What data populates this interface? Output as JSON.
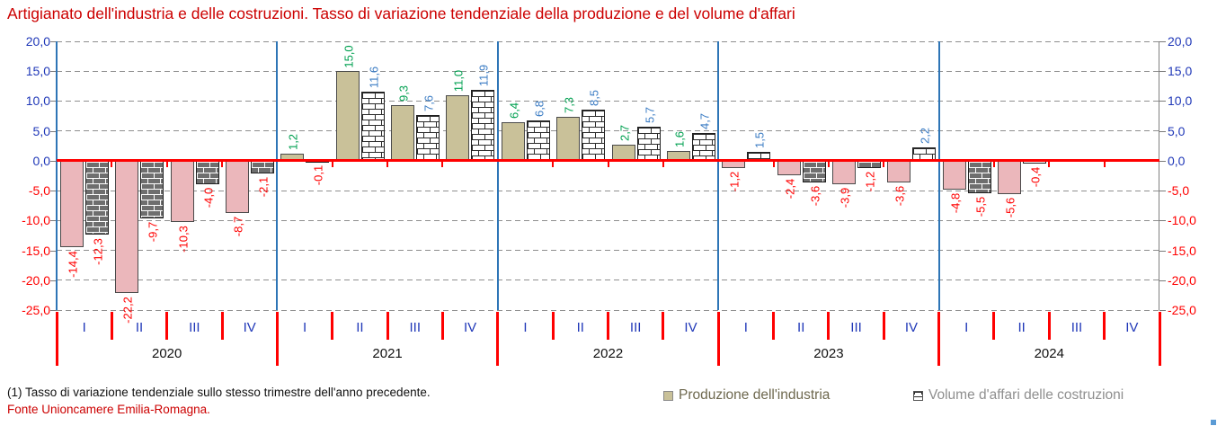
{
  "title": "Artigianato dell'industria e delle costruzioni. Tasso di variazione tendenziale della produzione e del volume d'affari",
  "footnotes": {
    "note": "(1) Tasso di variazione tendenziale sullo stesso trimestre dell'anno precedente.",
    "source": "Fonte Unioncamere Emilia-Romagna."
  },
  "legend": {
    "industry": "Produzione dell'industria",
    "construction": "Volume d'affari delle costruzioni"
  },
  "chart_data": {
    "type": "bar",
    "title": "Artigianato dell'industria e delle costruzioni. Tasso di variazione tendenziale della produzione e del volume d'affari",
    "years": [
      "2020",
      "2021",
      "2022",
      "2023",
      "2024"
    ],
    "quarter_labels": [
      "I",
      "II",
      "III",
      "IV"
    ],
    "series": [
      {
        "name": "Produzione dell'industria",
        "values": [
          -14.4,
          -22.2,
          -10.3,
          -8.7,
          1.2,
          15.0,
          9.3,
          11.0,
          6.4,
          7.3,
          2.7,
          1.6,
          -1.2,
          -2.4,
          -3.9,
          -3.6,
          -4.8,
          -5.6,
          null,
          null
        ]
      },
      {
        "name": "Volume d'affari delle costruzioni",
        "values": [
          -12.3,
          -9.7,
          -4.0,
          -2.1,
          -0.1,
          11.6,
          7.6,
          11.9,
          6.8,
          8.5,
          5.7,
          4.7,
          1.5,
          -3.6,
          -1.2,
          2.2,
          -5.5,
          -0.4,
          null,
          null
        ]
      }
    ],
    "ylim": [
      -25,
      20
    ],
    "ytick_step": 5,
    "grid": "dashed-horizontal",
    "legend_position": "bottom-right",
    "decimal_separator": ","
  },
  "colors": {
    "title": "#CC0000",
    "axis_positive_label": "#2038B8",
    "axis_negative_label": "#FF0000",
    "zero_line": "#FF0000",
    "year_separator": "#2E75B6",
    "right_axis": "#808080",
    "industry_positive_fill": "#C9C199",
    "industry_negative_fill": "#EBB7BB",
    "construction_positive_fill": "#FFFFFF",
    "construction_negative_fill": "#6E6E6E",
    "value_label_industry_positive": "#00A050",
    "value_label_construction_positive": "#3B7CC4",
    "value_label_negative": "#FF0000"
  }
}
